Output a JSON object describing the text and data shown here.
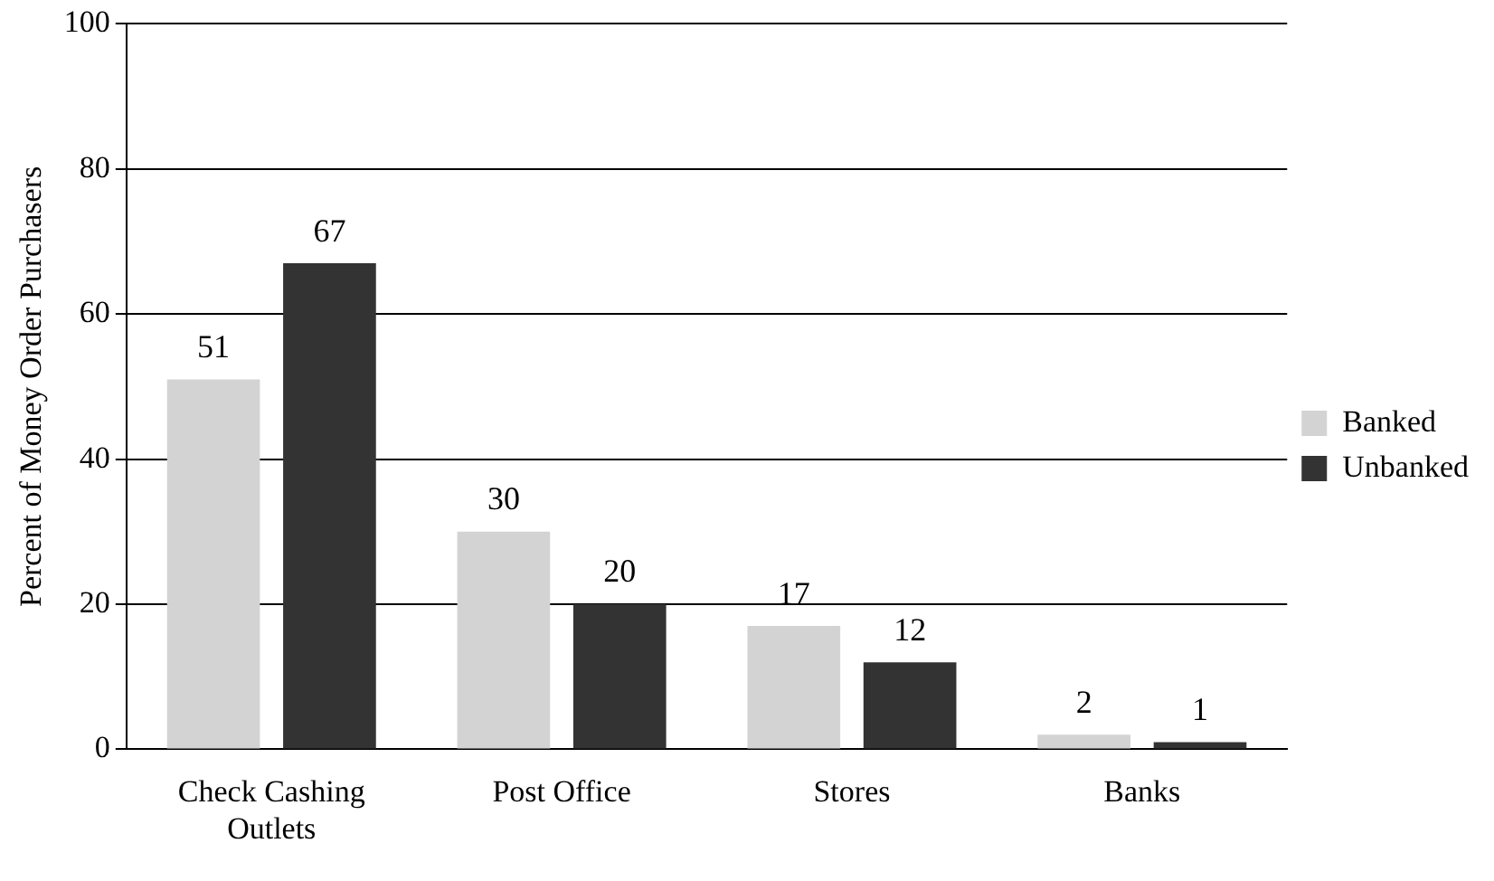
{
  "chart_data": {
    "type": "bar",
    "ylabel": "Percent of Money Order Purchasers",
    "categories": [
      "Check Cashing Outlets",
      "Post Office",
      "Stores",
      "Banks"
    ],
    "series": [
      {
        "name": "Banked",
        "color": "#d3d3d3",
        "values": [
          51,
          30,
          17,
          2
        ]
      },
      {
        "name": "Unbanked",
        "color": "#333333",
        "values": [
          67,
          20,
          12,
          1
        ]
      }
    ],
    "ylim": [
      0,
      100
    ],
    "yticks": [
      0,
      20,
      40,
      60,
      80,
      100
    ],
    "grid": "y",
    "legend": "right",
    "data_labels": true
  }
}
